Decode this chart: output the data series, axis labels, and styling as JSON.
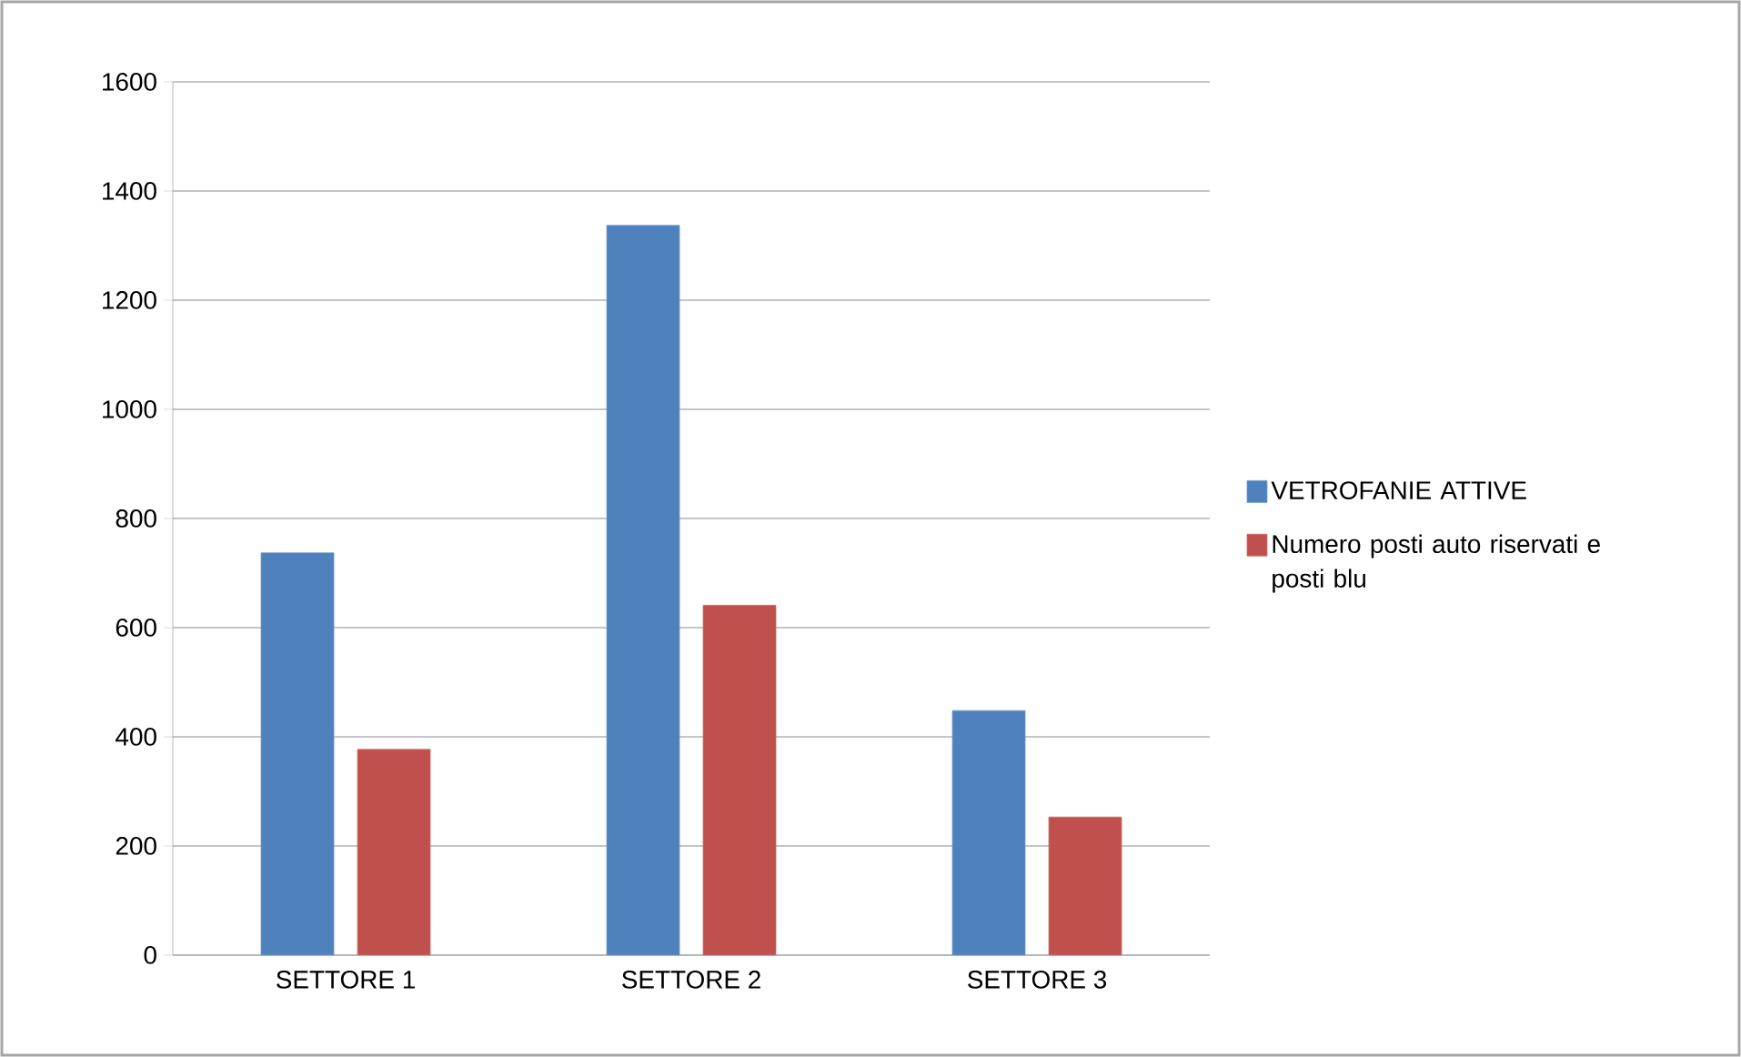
{
  "chart_data": {
    "type": "bar",
    "categories": [
      "SETTORE 1",
      "SETTORE 2",
      "SETTORE 3"
    ],
    "series": [
      {
        "name": "VETROFANIE ATTIVE",
        "color": "#4f81bd",
        "values": [
          737,
          1337,
          448
        ]
      },
      {
        "name": "Numero posti auto riservati e posti blu",
        "color": "#c0504d",
        "values": [
          377,
          641,
          253
        ]
      }
    ],
    "ylim": [
      0,
      1600
    ],
    "yticks": [
      0,
      200,
      400,
      600,
      800,
      1000,
      1200,
      1400,
      1600
    ],
    "grid": "y",
    "legend": "right"
  }
}
